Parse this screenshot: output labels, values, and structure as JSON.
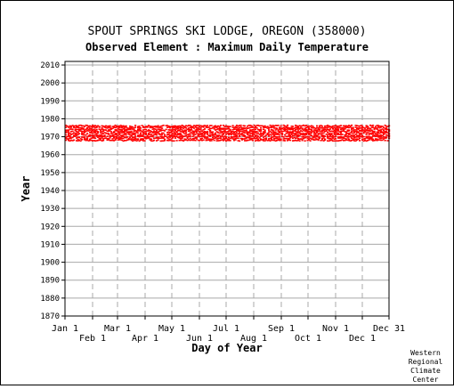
{
  "chart_data": {
    "type": "scatter",
    "title": "SPOUT SPRINGS SKI LODGE, OREGON   (358000)",
    "subtitle": "Observed Element : Maximum Daily Temperature",
    "xlabel": "Day of Year",
    "ylabel": "Year",
    "xlim": [
      1,
      365
    ],
    "ylim": [
      1870,
      2012
    ],
    "y_ticks": [
      1870,
      1880,
      1890,
      1900,
      1910,
      1920,
      1930,
      1940,
      1950,
      1960,
      1970,
      1980,
      1990,
      2000,
      2010
    ],
    "x_ticks_upper": [
      {
        "label": "Jan 1",
        "day": 1
      },
      {
        "label": "Mar 1",
        "day": 60
      },
      {
        "label": "May 1",
        "day": 121
      },
      {
        "label": "Jul 1",
        "day": 182
      },
      {
        "label": "Sep 1",
        "day": 244
      },
      {
        "label": "Nov 1",
        "day": 305
      },
      {
        "label": "Dec 31",
        "day": 365
      }
    ],
    "x_ticks_lower": [
      {
        "label": "Feb 1",
        "day": 32
      },
      {
        "label": "Apr 1",
        "day": 91
      },
      {
        "label": "Jun 1",
        "day": 152
      },
      {
        "label": "Aug 1",
        "day": 213
      },
      {
        "label": "Oct 1",
        "day": 274
      },
      {
        "label": "Dec 1",
        "day": 335
      }
    ],
    "grid": true,
    "series": [
      {
        "color": "#ff0000",
        "year_range": [
          1968,
          1976
        ],
        "day_range": [
          1,
          365
        ],
        "note_years": [
          1968,
          1969,
          1970,
          1971,
          1972,
          1973,
          1974,
          1975
        ]
      }
    ]
  },
  "credit": [
    "Western",
    "Regional",
    "Climate",
    "Center"
  ]
}
